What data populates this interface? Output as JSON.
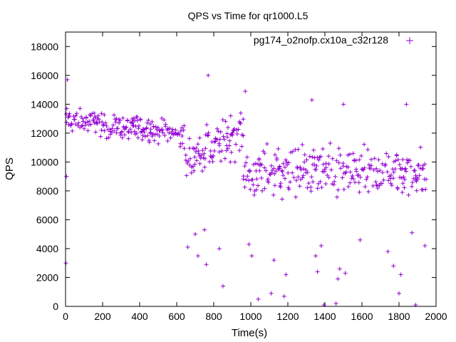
{
  "chart_data": {
    "type": "scatter",
    "title": "QPS vs Time for qr1000.L5",
    "xlabel": "Time(s)",
    "ylabel": "QPS",
    "xlim": [
      0,
      2000
    ],
    "ylim": [
      0,
      19000
    ],
    "xticks": [
      0,
      200,
      400,
      600,
      800,
      1000,
      1200,
      1400,
      1600,
      1800,
      2000
    ],
    "yticks": [
      0,
      2000,
      4000,
      6000,
      8000,
      10000,
      12000,
      14000,
      16000,
      18000
    ],
    "marker": "+",
    "grid": false,
    "legend_position": "top-right",
    "series": [
      {
        "name": "pg174_o2nofp.cx10a_c32r128",
        "color": "#9400d3",
        "x_start": 0,
        "x_step": 5,
        "segments": [
          {
            "x_from": 0,
            "x_to": 640,
            "mean_y": 12900,
            "trend_per_s": -1.5,
            "spread": 800
          },
          {
            "x_from": 640,
            "x_to": 960,
            "mean_y": 10200,
            "trend_per_s": 6,
            "spread": 1600
          },
          {
            "x_from": 960,
            "x_to": 1950,
            "mean_y": 9300,
            "trend_per_s": 0,
            "spread": 1700
          }
        ],
        "outliers": [
          {
            "x": 2,
            "y": 3000
          },
          {
            "x": 5,
            "y": 9000
          },
          {
            "x": 10,
            "y": 15700
          },
          {
            "x": 660,
            "y": 4100
          },
          {
            "x": 700,
            "y": 5000
          },
          {
            "x": 715,
            "y": 3500
          },
          {
            "x": 750,
            "y": 5300
          },
          {
            "x": 760,
            "y": 2900
          },
          {
            "x": 770,
            "y": 16000
          },
          {
            "x": 830,
            "y": 4000
          },
          {
            "x": 850,
            "y": 1400
          },
          {
            "x": 970,
            "y": 14900
          },
          {
            "x": 990,
            "y": 4300
          },
          {
            "x": 1005,
            "y": 3500
          },
          {
            "x": 1040,
            "y": 500
          },
          {
            "x": 1110,
            "y": 900
          },
          {
            "x": 1125,
            "y": 3200
          },
          {
            "x": 1180,
            "y": 700
          },
          {
            "x": 1190,
            "y": 2200
          },
          {
            "x": 1350,
            "y": 3500
          },
          {
            "x": 1360,
            "y": 2400
          },
          {
            "x": 1380,
            "y": 4200
          },
          {
            "x": 1395,
            "y": 100
          },
          {
            "x": 1460,
            "y": 200
          },
          {
            "x": 1470,
            "y": 1900
          },
          {
            "x": 1480,
            "y": 2600
          },
          {
            "x": 1510,
            "y": 2300
          },
          {
            "x": 1590,
            "y": 4600
          },
          {
            "x": 1740,
            "y": 3800
          },
          {
            "x": 1770,
            "y": 2800
          },
          {
            "x": 1800,
            "y": 900
          },
          {
            "x": 1810,
            "y": 2200
          },
          {
            "x": 1870,
            "y": 5100
          },
          {
            "x": 1890,
            "y": 100
          },
          {
            "x": 1940,
            "y": 4200
          },
          {
            "x": 1500,
            "y": 14000
          },
          {
            "x": 1330,
            "y": 14300
          },
          {
            "x": 1840,
            "y": 14000
          }
        ]
      }
    ]
  }
}
